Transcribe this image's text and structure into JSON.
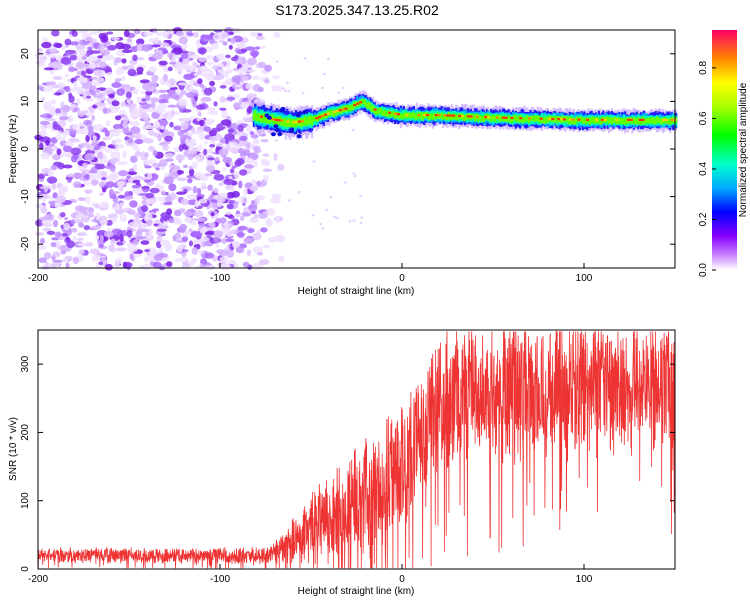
{
  "title": "S173.2025.347.13.25.R02",
  "chart_data": [
    {
      "type": "heatmap",
      "xlabel": "Height of straight line (km)",
      "ylabel": "Frequency (Hz)",
      "xlim": [
        -200,
        150
      ],
      "ylim": [
        -25,
        25
      ],
      "xticks": [
        "-200",
        "-100",
        "0",
        "100"
      ],
      "yticks": [
        "-20",
        "-10",
        "0",
        "10",
        "20"
      ],
      "ridge": {
        "description_points": [
          {
            "x": -82,
            "f": 7
          },
          {
            "x": -70,
            "f": 6
          },
          {
            "x": -60,
            "f": 5.5
          },
          {
            "x": -50,
            "f": 6
          },
          {
            "x": -40,
            "f": 7.5
          },
          {
            "x": -30,
            "f": 8.5
          },
          {
            "x": -22,
            "f": 10
          },
          {
            "x": -15,
            "f": 8
          },
          {
            "x": 0,
            "f": 7
          },
          {
            "x": 20,
            "f": 7
          },
          {
            "x": 50,
            "f": 6.5
          },
          {
            "x": 100,
            "f": 6
          },
          {
            "x": 150,
            "f": 6
          }
        ]
      },
      "noise_region_x": [
        -200,
        -65
      ],
      "colorbar": {
        "label": "Normalized spectral amplitude",
        "ticks": [
          "0.0",
          "0.2",
          "0.4",
          "0.6",
          "0.8"
        ],
        "range": [
          0,
          0.95
        ]
      }
    },
    {
      "type": "line",
      "xlabel": "Height of straight line (km)",
      "ylabel": "SNR (10 * v/v)",
      "xlim": [
        -200,
        150
      ],
      "ylim": [
        0,
        350
      ],
      "xticks": [
        "-200",
        "-100",
        "0",
        "100"
      ],
      "yticks": [
        "0",
        "100",
        "200",
        "300"
      ],
      "color": "#ee3333",
      "envelope": [
        {
          "x": -200,
          "mean": 20,
          "amp": 12
        },
        {
          "x": -75,
          "mean": 20,
          "amp": 14
        },
        {
          "x": -65,
          "mean": 30,
          "amp": 25
        },
        {
          "x": -50,
          "mean": 60,
          "amp": 60
        },
        {
          "x": -30,
          "mean": 90,
          "amp": 90
        },
        {
          "x": -10,
          "mean": 120,
          "amp": 110
        },
        {
          "x": 10,
          "mean": 200,
          "amp": 110
        },
        {
          "x": 20,
          "mean": 250,
          "amp": 120
        },
        {
          "x": 40,
          "mean": 260,
          "amp": 120
        },
        {
          "x": 80,
          "mean": 265,
          "amp": 120
        },
        {
          "x": 150,
          "mean": 270,
          "amp": 110
        }
      ]
    }
  ]
}
